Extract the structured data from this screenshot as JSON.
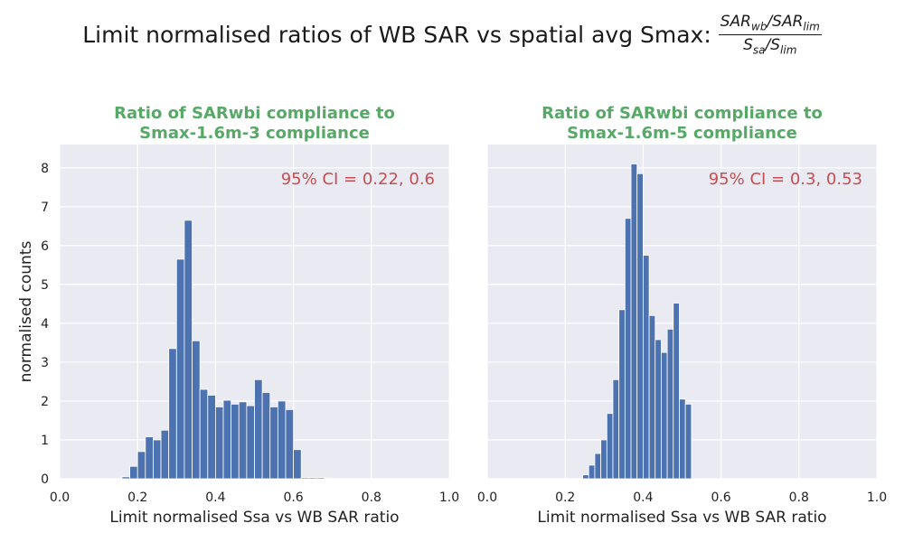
{
  "figure": {
    "suptitle_text": "Limit normalised ratios of WB SAR vs spatial avg Smax:",
    "formula": {
      "num_a": "SAR",
      "num_a_sub": "wb",
      "num_slash": "/",
      "num_b": "SAR",
      "num_b_sub": "lim",
      "den_a": "S",
      "den_a_sub": "sa",
      "den_slash": "/",
      "den_b": "S",
      "den_b_sub": "lim"
    }
  },
  "chart_data": [
    {
      "type": "bar",
      "title_lines": [
        "Ratio of SARwbi compliance to",
        "Smax-1.6m-3 compliance"
      ],
      "xlabel": "Limit normalised Ssa vs WB SAR ratio",
      "ylabel": "normalised counts",
      "xlim": [
        0.0,
        1.0
      ],
      "ylim": [
        0,
        8.6
      ],
      "xticks": [
        "0.0",
        "0.2",
        "0.4",
        "0.6",
        "0.8",
        "1.0"
      ],
      "yticks": [
        "0",
        "1",
        "2",
        "3",
        "4",
        "5",
        "6",
        "7",
        "8"
      ],
      "bin_width": 0.02,
      "bin_left_edges": [
        0.16,
        0.18,
        0.2,
        0.22,
        0.24,
        0.26,
        0.28,
        0.3,
        0.32,
        0.34,
        0.36,
        0.38,
        0.4,
        0.42,
        0.44,
        0.46,
        0.48,
        0.5,
        0.52,
        0.54,
        0.56,
        0.58,
        0.6,
        0.62,
        0.64,
        0.66,
        0.68
      ],
      "values": [
        0.05,
        0.32,
        0.7,
        1.08,
        1.0,
        1.25,
        3.35,
        5.65,
        6.65,
        3.55,
        2.3,
        2.15,
        1.85,
        2.02,
        1.92,
        1.98,
        1.88,
        2.55,
        2.22,
        1.85,
        2.0,
        1.78,
        0.75,
        0.03,
        0.03,
        0.03,
        0.02
      ],
      "annotation": "95% CI = 0.22, 0.6",
      "grid": true,
      "show_yticklabels": true
    },
    {
      "type": "bar",
      "title_lines": [
        "Ratio of SARwbi compliance to",
        "Smax-1.6m-5 compliance"
      ],
      "xlabel": "Limit normalised Ssa vs WB SAR ratio",
      "ylabel": "",
      "xlim": [
        0.0,
        1.0
      ],
      "ylim": [
        0,
        8.6
      ],
      "xticks": [
        "0.0",
        "0.2",
        "0.4",
        "0.6",
        "0.8",
        "1.0"
      ],
      "yticks": [],
      "bin_width": 0.0155,
      "bin_left_edges": [
        0.245,
        0.2605,
        0.276,
        0.2915,
        0.307,
        0.3225,
        0.338,
        0.3535,
        0.369,
        0.3845,
        0.4,
        0.4155,
        0.431,
        0.4465,
        0.462,
        0.4775,
        0.493,
        0.5085,
        0.524
      ],
      "values": [
        0.1,
        0.35,
        0.65,
        1.0,
        1.68,
        2.55,
        4.35,
        6.7,
        8.1,
        7.85,
        5.75,
        4.2,
        3.58,
        3.25,
        3.85,
        4.52,
        2.05,
        1.92,
        0.0
      ],
      "annotation": "95% CI = 0.3, 0.53",
      "grid": true,
      "show_yticklabels": false
    }
  ]
}
